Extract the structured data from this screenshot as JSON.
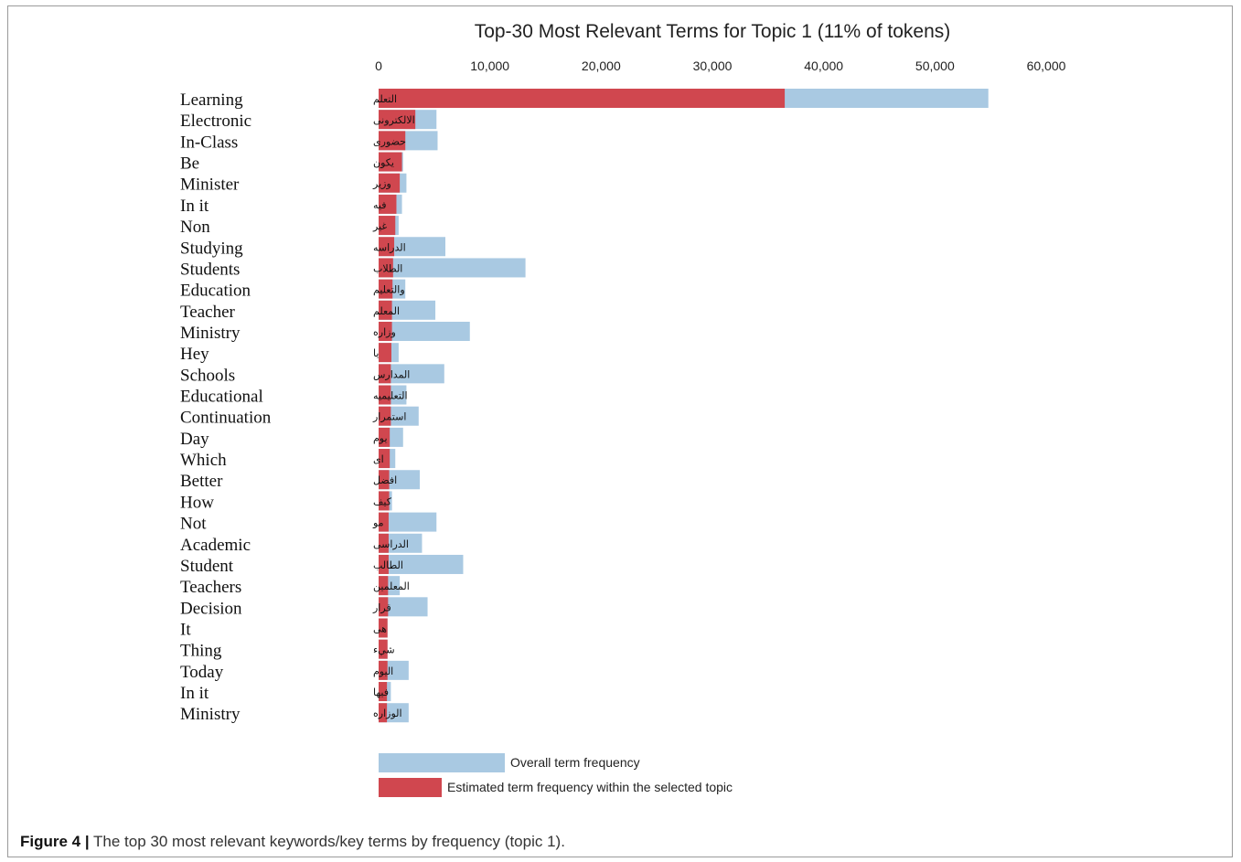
{
  "chart_data": {
    "type": "bar",
    "orientation": "horizontal",
    "stacked": "overlay",
    "title": "Top-30 Most Relevant Terms for Topic 1 (11% of tokens)",
    "x_ticks": [
      "0",
      "10,000",
      "20,000",
      "30,000",
      "40,000",
      "50,000",
      "60,000"
    ],
    "xlim": [
      0,
      60000
    ],
    "grid": false,
    "legend_position": "bottom-left",
    "colors": {
      "overall": "#a9c9e2",
      "topic": "#d0474f"
    },
    "categories": [
      {
        "english": "Learning",
        "arabic": "التعلم"
      },
      {
        "english": "Electronic",
        "arabic": "الالكترونى"
      },
      {
        "english": "In-Class",
        "arabic": "حضورى"
      },
      {
        "english": "Be",
        "arabic": "يكون"
      },
      {
        "english": "Minister",
        "arabic": "وزير"
      },
      {
        "english": "In it",
        "arabic": "فيه"
      },
      {
        "english": "Non",
        "arabic": "غير"
      },
      {
        "english": "Studying",
        "arabic": "الدراسه"
      },
      {
        "english": "Students",
        "arabic": "الطلاب"
      },
      {
        "english": "Education",
        "arabic": "والتعليم"
      },
      {
        "english": "Teacher",
        "arabic": "المعلم"
      },
      {
        "english": "Ministry",
        "arabic": "وزاره"
      },
      {
        "english": "Hey",
        "arabic": "يا"
      },
      {
        "english": "Schools",
        "arabic": "المدارس"
      },
      {
        "english": "Educational",
        "arabic": "التعليميه"
      },
      {
        "english": "Continuation",
        "arabic": "استمرار"
      },
      {
        "english": "Day",
        "arabic": "يوم"
      },
      {
        "english": "Which",
        "arabic": "اى"
      },
      {
        "english": "Better",
        "arabic": "افضل"
      },
      {
        "english": "How",
        "arabic": "كيف"
      },
      {
        "english": "Not",
        "arabic": "مو"
      },
      {
        "english": "Academic",
        "arabic": "الدراسى"
      },
      {
        "english": "Student",
        "arabic": "الطالب"
      },
      {
        "english": "Teachers",
        "arabic": "المعلمين"
      },
      {
        "english": "Decision",
        "arabic": "قرار"
      },
      {
        "english": "It",
        "arabic": "هى"
      },
      {
        "english": "Thing",
        "arabic": "شيء"
      },
      {
        "english": "Today",
        "arabic": "اليوم"
      },
      {
        "english": "In it",
        "arabic": "فيها"
      },
      {
        "english": "Ministry",
        "arabic": "الوزاره"
      }
    ],
    "series": [
      {
        "name": "Overall term frequency",
        "values": [
          54800,
          5200,
          5300,
          2200,
          2500,
          2100,
          1800,
          6000,
          13200,
          2400,
          5100,
          8200,
          1800,
          5900,
          2500,
          3600,
          2200,
          1500,
          3700,
          1200,
          5200,
          3900,
          7600,
          1900,
          4400,
          800,
          800,
          2700,
          1100,
          2700
        ]
      },
      {
        "name": "Estimated term frequency within the selected topic",
        "values": [
          36500,
          3300,
          2400,
          2100,
          1900,
          1600,
          1500,
          1400,
          1300,
          1250,
          1200,
          1200,
          1150,
          1100,
          1100,
          1100,
          1000,
          1000,
          950,
          950,
          900,
          900,
          900,
          850,
          850,
          800,
          800,
          800,
          750,
          750
        ]
      }
    ]
  },
  "caption": {
    "label": "Figure 4 |",
    "text": " The top 30 most relevant keywords/key terms by frequency (topic 1)."
  }
}
